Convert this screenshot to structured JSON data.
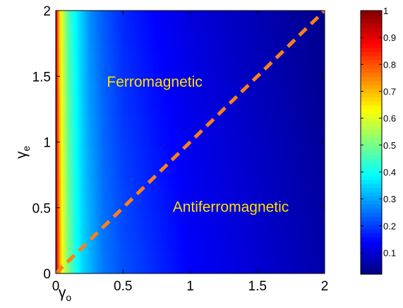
{
  "chart_data": {
    "type": "heatmap",
    "title": "",
    "x": {
      "symbol": "γ",
      "subscript": "o",
      "lim": [
        0,
        2
      ],
      "ticks": [
        0,
        0.5,
        1,
        1.5,
        2
      ],
      "tick_labels": [
        "0",
        "0.5",
        "1",
        "1.5",
        "2"
      ]
    },
    "y": {
      "symbol": "γ",
      "subscript": "e",
      "lim": [
        0,
        2
      ],
      "ticks": [
        0,
        0.5,
        1,
        1.5,
        2
      ],
      "tick_labels": [
        "0",
        "0.5",
        "1",
        "1.5",
        "2"
      ]
    },
    "colormap": "jet",
    "colorbar": {
      "lim": [
        0.02,
        1
      ],
      "ticks": [
        0.1,
        0.2,
        0.3,
        0.4,
        0.5,
        0.6,
        0.7,
        0.8,
        0.9,
        1
      ],
      "tick_labels": [
        "0.1",
        "0.2",
        "0.3",
        "0.4",
        "0.5",
        "0.6",
        "0.7",
        "0.8",
        "0.9",
        "1"
      ],
      "placement": "right"
    },
    "field_samples": {
      "x": [
        0,
        0.02,
        0.05,
        0.1,
        0.15,
        0.2,
        0.25,
        0.35,
        0.5,
        0.75,
        1,
        1.5,
        2
      ],
      "y_at_0": [
        1,
        0.78,
        0.62,
        0.49,
        0.41,
        0.35,
        0.32,
        0.26,
        0.22,
        0.18,
        0.14,
        0.1,
        0.06
      ],
      "y_at_2": [
        1,
        0.72,
        0.58,
        0.45,
        0.38,
        0.33,
        0.28,
        0.23,
        0.18,
        0.14,
        0.11,
        0.07,
        0.03
      ]
    },
    "boundary_line": {
      "style": "dashed",
      "color": "#ff7f1a",
      "points": [
        [
          0,
          0
        ],
        [
          2,
          2
        ]
      ]
    },
    "annotations": [
      {
        "text": "Ferromagnetic",
        "x": 0.38,
        "y": 1.42,
        "color": "#ffe000"
      },
      {
        "text": "Antiferromagnetic",
        "x": 0.87,
        "y": 0.47,
        "color": "#ffe000"
      }
    ],
    "grid": false
  }
}
